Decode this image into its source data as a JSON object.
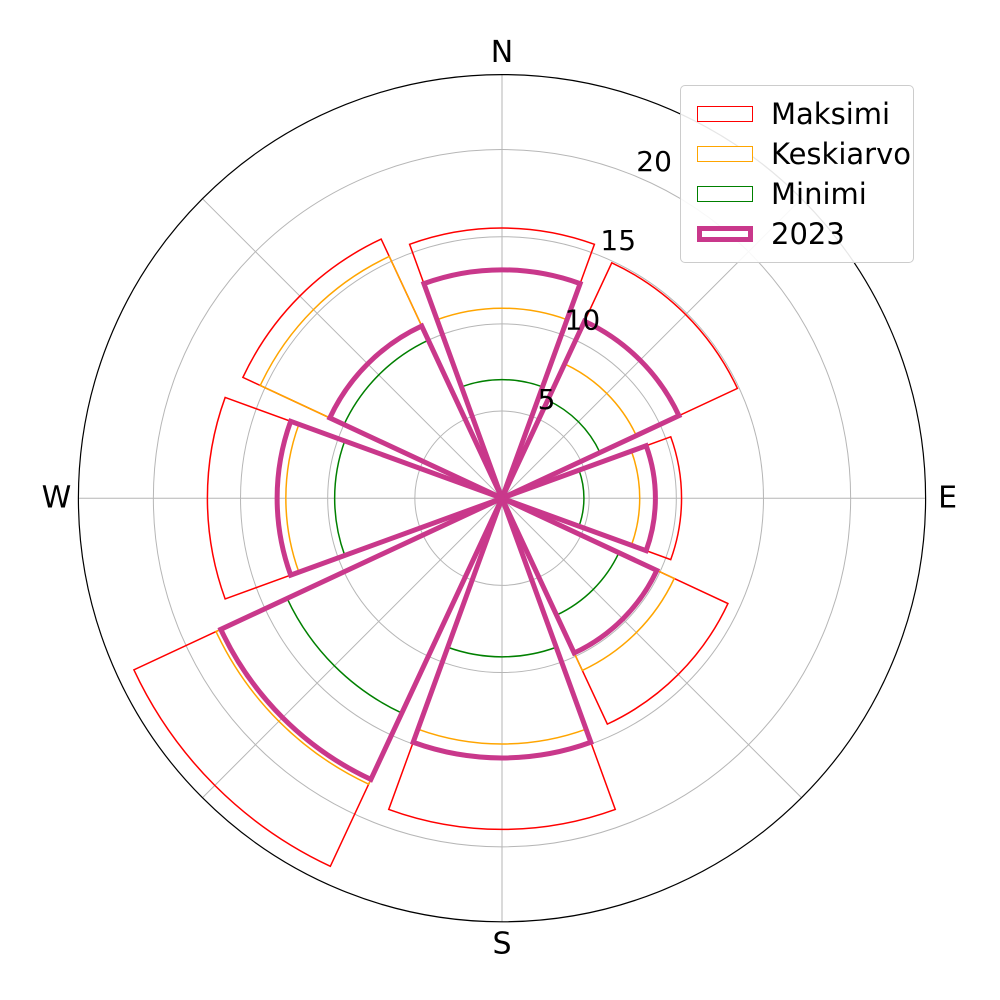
{
  "figure": {
    "background": "#ffffff",
    "grid_color": "#b6b6b6",
    "spine_color": "#000000"
  },
  "compass": {
    "north": "N",
    "east": "E",
    "south": "S",
    "west": "W"
  },
  "radial_axis": {
    "ticks": [
      5,
      10,
      15,
      20
    ],
    "tick_labels": [
      "5",
      "10",
      "15",
      "20"
    ],
    "max": 24.3,
    "tick_label_angle_deg": 65.7
  },
  "legend": {
    "items": [
      {
        "label": "Maksimi",
        "color": "#ff0000",
        "line_width": 1.5
      },
      {
        "label": "Keskiarvo",
        "color": "#ffa500",
        "line_width": 1.5
      },
      {
        "label": "Minimi",
        "color": "#008000",
        "line_width": 1.5
      },
      {
        "label": "2023",
        "color": "#c9388b",
        "line_width": 5
      }
    ]
  },
  "chart_data": {
    "type": "windrose-polar-bar-outline",
    "categories": [
      "N",
      "NE",
      "E",
      "SE",
      "S",
      "SW",
      "W",
      "NW"
    ],
    "sector_width_deg": 40,
    "grid": true,
    "legend_position": "upper right",
    "rlim": [
      0,
      24.3
    ],
    "series": [
      {
        "name": "Maksimi",
        "color": "#ff0000",
        "line_width": 1.5,
        "values": [
          15.5,
          14.9,
          10.3,
          14.3,
          19.0,
          23.3,
          16.9,
          16.4
        ]
      },
      {
        "name": "Keskiarvo",
        "color": "#ffa500",
        "line_width": 1.5,
        "values": [
          10.9,
          8.5,
          7.9,
          10.9,
          14.1,
          18.1,
          12.4,
          15.3
        ]
      },
      {
        "name": "Minimi",
        "color": "#008000",
        "line_width": 1.5,
        "values": [
          6.8,
          6.2,
          4.7,
          7.4,
          9.1,
          13.6,
          9.6,
          10.0
        ]
      },
      {
        "name": "2023",
        "color": "#c9388b",
        "line_width": 5,
        "values": [
          13.1,
          11.2,
          8.8,
          9.8,
          14.9,
          17.8,
          12.9,
          10.9
        ]
      }
    ]
  }
}
